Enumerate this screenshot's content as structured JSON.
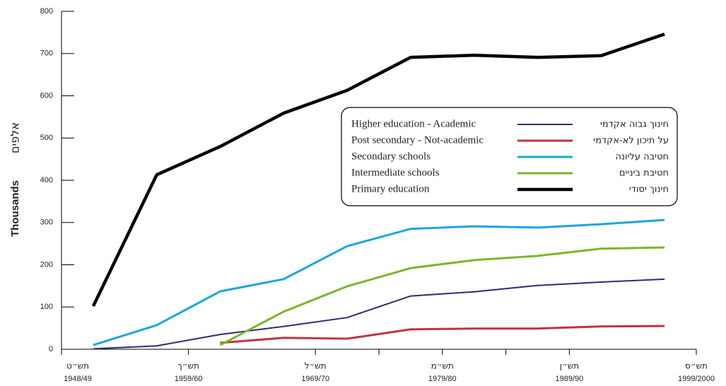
{
  "chart_data": {
    "type": "line",
    "y_label": "Thousands",
    "y_label_hebrew": "אלפים",
    "x": [
      1951.5,
      1956.5,
      1961.5,
      1966.5,
      1971.5,
      1976.5,
      1981.5,
      1986.5,
      1991.5,
      1996.5
    ],
    "xlim": [
      1949,
      1999
    ],
    "xticks": [
      {
        "value": 1949,
        "label": "1948/49"
      },
      {
        "value": 1959,
        "label": "1959/60"
      },
      {
        "value": 1969,
        "label": "1969/70"
      },
      {
        "value": 1979,
        "label": "1979/80"
      },
      {
        "value": 1989,
        "label": "1989/90"
      },
      {
        "value": 1999,
        "label": "1999/2000"
      }
    ],
    "xtick_labels_hebrew": [
      "תש״ט",
      "תש״ך",
      "תש״ל",
      "תש״מ",
      "תש״ן",
      "תש״ס"
    ],
    "xminorticks": [
      1974,
      1984
    ],
    "ylim": [
      0,
      800
    ],
    "yticks": [
      0,
      100,
      200,
      300,
      400,
      500,
      600,
      700,
      800
    ],
    "legend": "center-right",
    "series": [
      {
        "name": "Higher education - Academic",
        "name_hebrew": "חינוך גבוה אקדמי",
        "color": "#2e2a7a",
        "width": 2,
        "values": [
          1,
          8,
          35,
          54,
          75,
          126,
          136,
          151,
          159,
          166
        ]
      },
      {
        "name": "Post secondary - Not-academic",
        "name_hebrew": "על תיכון לא-אקדמי",
        "color": "#c2333d",
        "width": 3,
        "values": [
          null,
          null,
          15,
          27,
          25,
          47,
          49,
          49,
          54,
          55
        ]
      },
      {
        "name": "Secondary schools",
        "name_hebrew": "חטיבה עליונה",
        "color": "#1ea4e0",
        "width": 3,
        "values": [
          10,
          57,
          137,
          166,
          244,
          285,
          291,
          288,
          296,
          306
        ]
      },
      {
        "name": "Intermediate schools",
        "name_hebrew": "חטיבת ביניים",
        "color": "#7cb52a",
        "width": 3,
        "values": [
          null,
          null,
          10,
          89,
          149,
          192,
          211,
          221,
          238,
          241
        ]
      },
      {
        "name": "Primary education",
        "name_hebrew": "חינוך יסודי",
        "color": "#000000",
        "width": 4.5,
        "values": [
          102,
          413,
          480,
          559,
          613,
          691,
          696,
          691,
          695,
          746
        ]
      }
    ]
  }
}
